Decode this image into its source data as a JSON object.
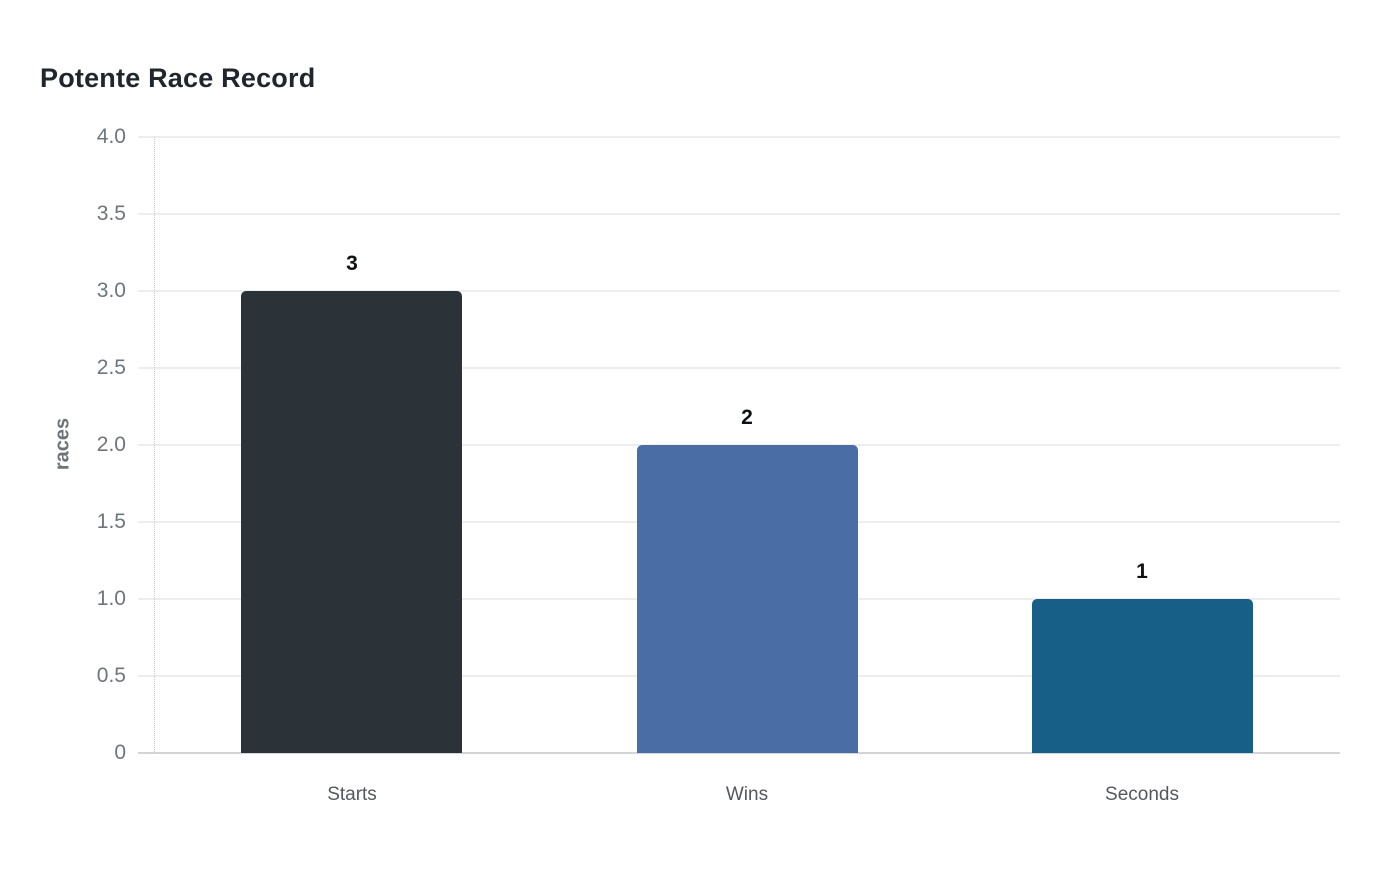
{
  "title": "Potente Race Record",
  "chart_data": {
    "type": "bar",
    "title": "Potente Race Record",
    "categories": [
      "Starts",
      "Wins",
      "Seconds"
    ],
    "values": [
      3,
      2,
      1
    ],
    "value_labels": [
      "3",
      "2",
      "1"
    ],
    "bar_colors": [
      "#2c3338",
      "#4b6da6",
      "#175f87"
    ],
    "xlabel": "",
    "ylabel": "races",
    "ylim": [
      0,
      4
    ],
    "yticks": [
      0,
      0.5,
      1,
      1.5,
      2,
      2.5,
      3,
      3.5,
      4
    ],
    "ytick_labels": [
      "0",
      "0.5",
      "1.0",
      "1.5",
      "2.0",
      "2.5",
      "3.0",
      "3.5",
      "4.0"
    ],
    "grid": "horizontal",
    "legend": "none"
  },
  "colors": {
    "background": "#ffffff",
    "title_text": "#20262c",
    "axis_tick_text": "#70757a",
    "x_label_text": "#55595e",
    "gridline": "#ededee",
    "baseline": "#d3d4d6",
    "axis_dotted_line": "#c7c9cb",
    "bar_starts": "#2c3338",
    "bar_wins": "#4b6da6",
    "bar_seconds": "#175f87"
  }
}
